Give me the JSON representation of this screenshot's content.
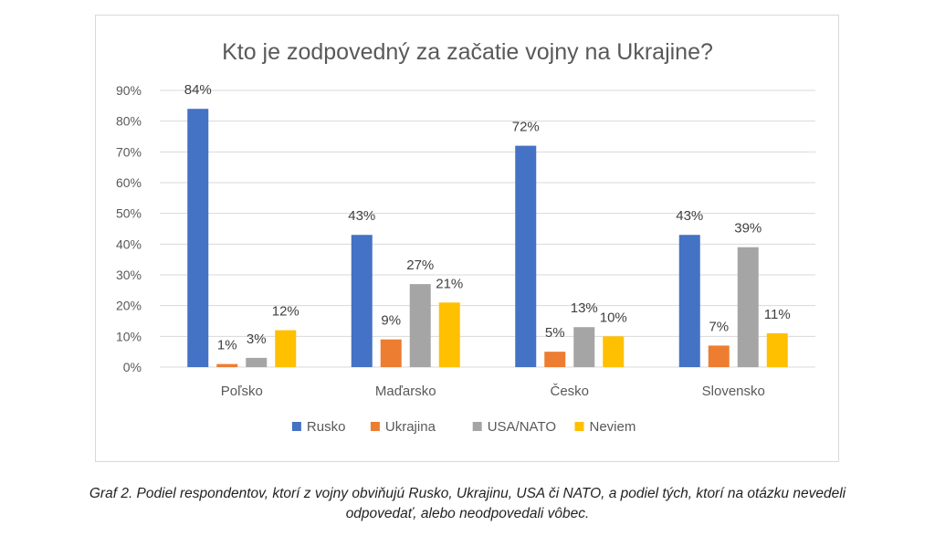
{
  "chart_data": {
    "type": "bar",
    "title": "Kto je zodpovedný za začatie vojny na Ukrajine?",
    "categories": [
      "Poľsko",
      "Maďarsko",
      "Česko",
      "Slovensko"
    ],
    "series": [
      {
        "name": "Rusko",
        "color": "#4472c4",
        "values": [
          84,
          43,
          72,
          43
        ],
        "labels": [
          "84%",
          "43%",
          "72%",
          "43%"
        ]
      },
      {
        "name": "Ukrajina",
        "color": "#ed7d31",
        "values": [
          1,
          9,
          5,
          7
        ],
        "labels": [
          "1%",
          "9%",
          "5%",
          "7%"
        ]
      },
      {
        "name": "USA/NATO",
        "color": "#a5a5a5",
        "values": [
          3,
          27,
          13,
          39
        ],
        "labels": [
          "3%",
          "27%",
          "13%",
          "39%"
        ]
      },
      {
        "name": "Neviem",
        "color": "#ffc000",
        "values": [
          12,
          21,
          10,
          11
        ],
        "labels": [
          "12%",
          "21%",
          "10%",
          "11%"
        ]
      }
    ],
    "ylim": [
      0,
      90
    ],
    "ytick_labels": [
      "0%",
      "10%",
      "20%",
      "30%",
      "40%",
      "50%",
      "60%",
      "70%",
      "80%",
      "90%"
    ],
    "grid": true,
    "legend_position": "bottom"
  },
  "caption": {
    "line1": "Graf 2. Podiel respondentov, ktorí z vojny obviňujú Rusko, Ukrajinu, USA či NATO, a podiel tých, ktorí na otázku nevedeli",
    "line2": "odpovedať, alebo neodpovedali vôbec."
  }
}
